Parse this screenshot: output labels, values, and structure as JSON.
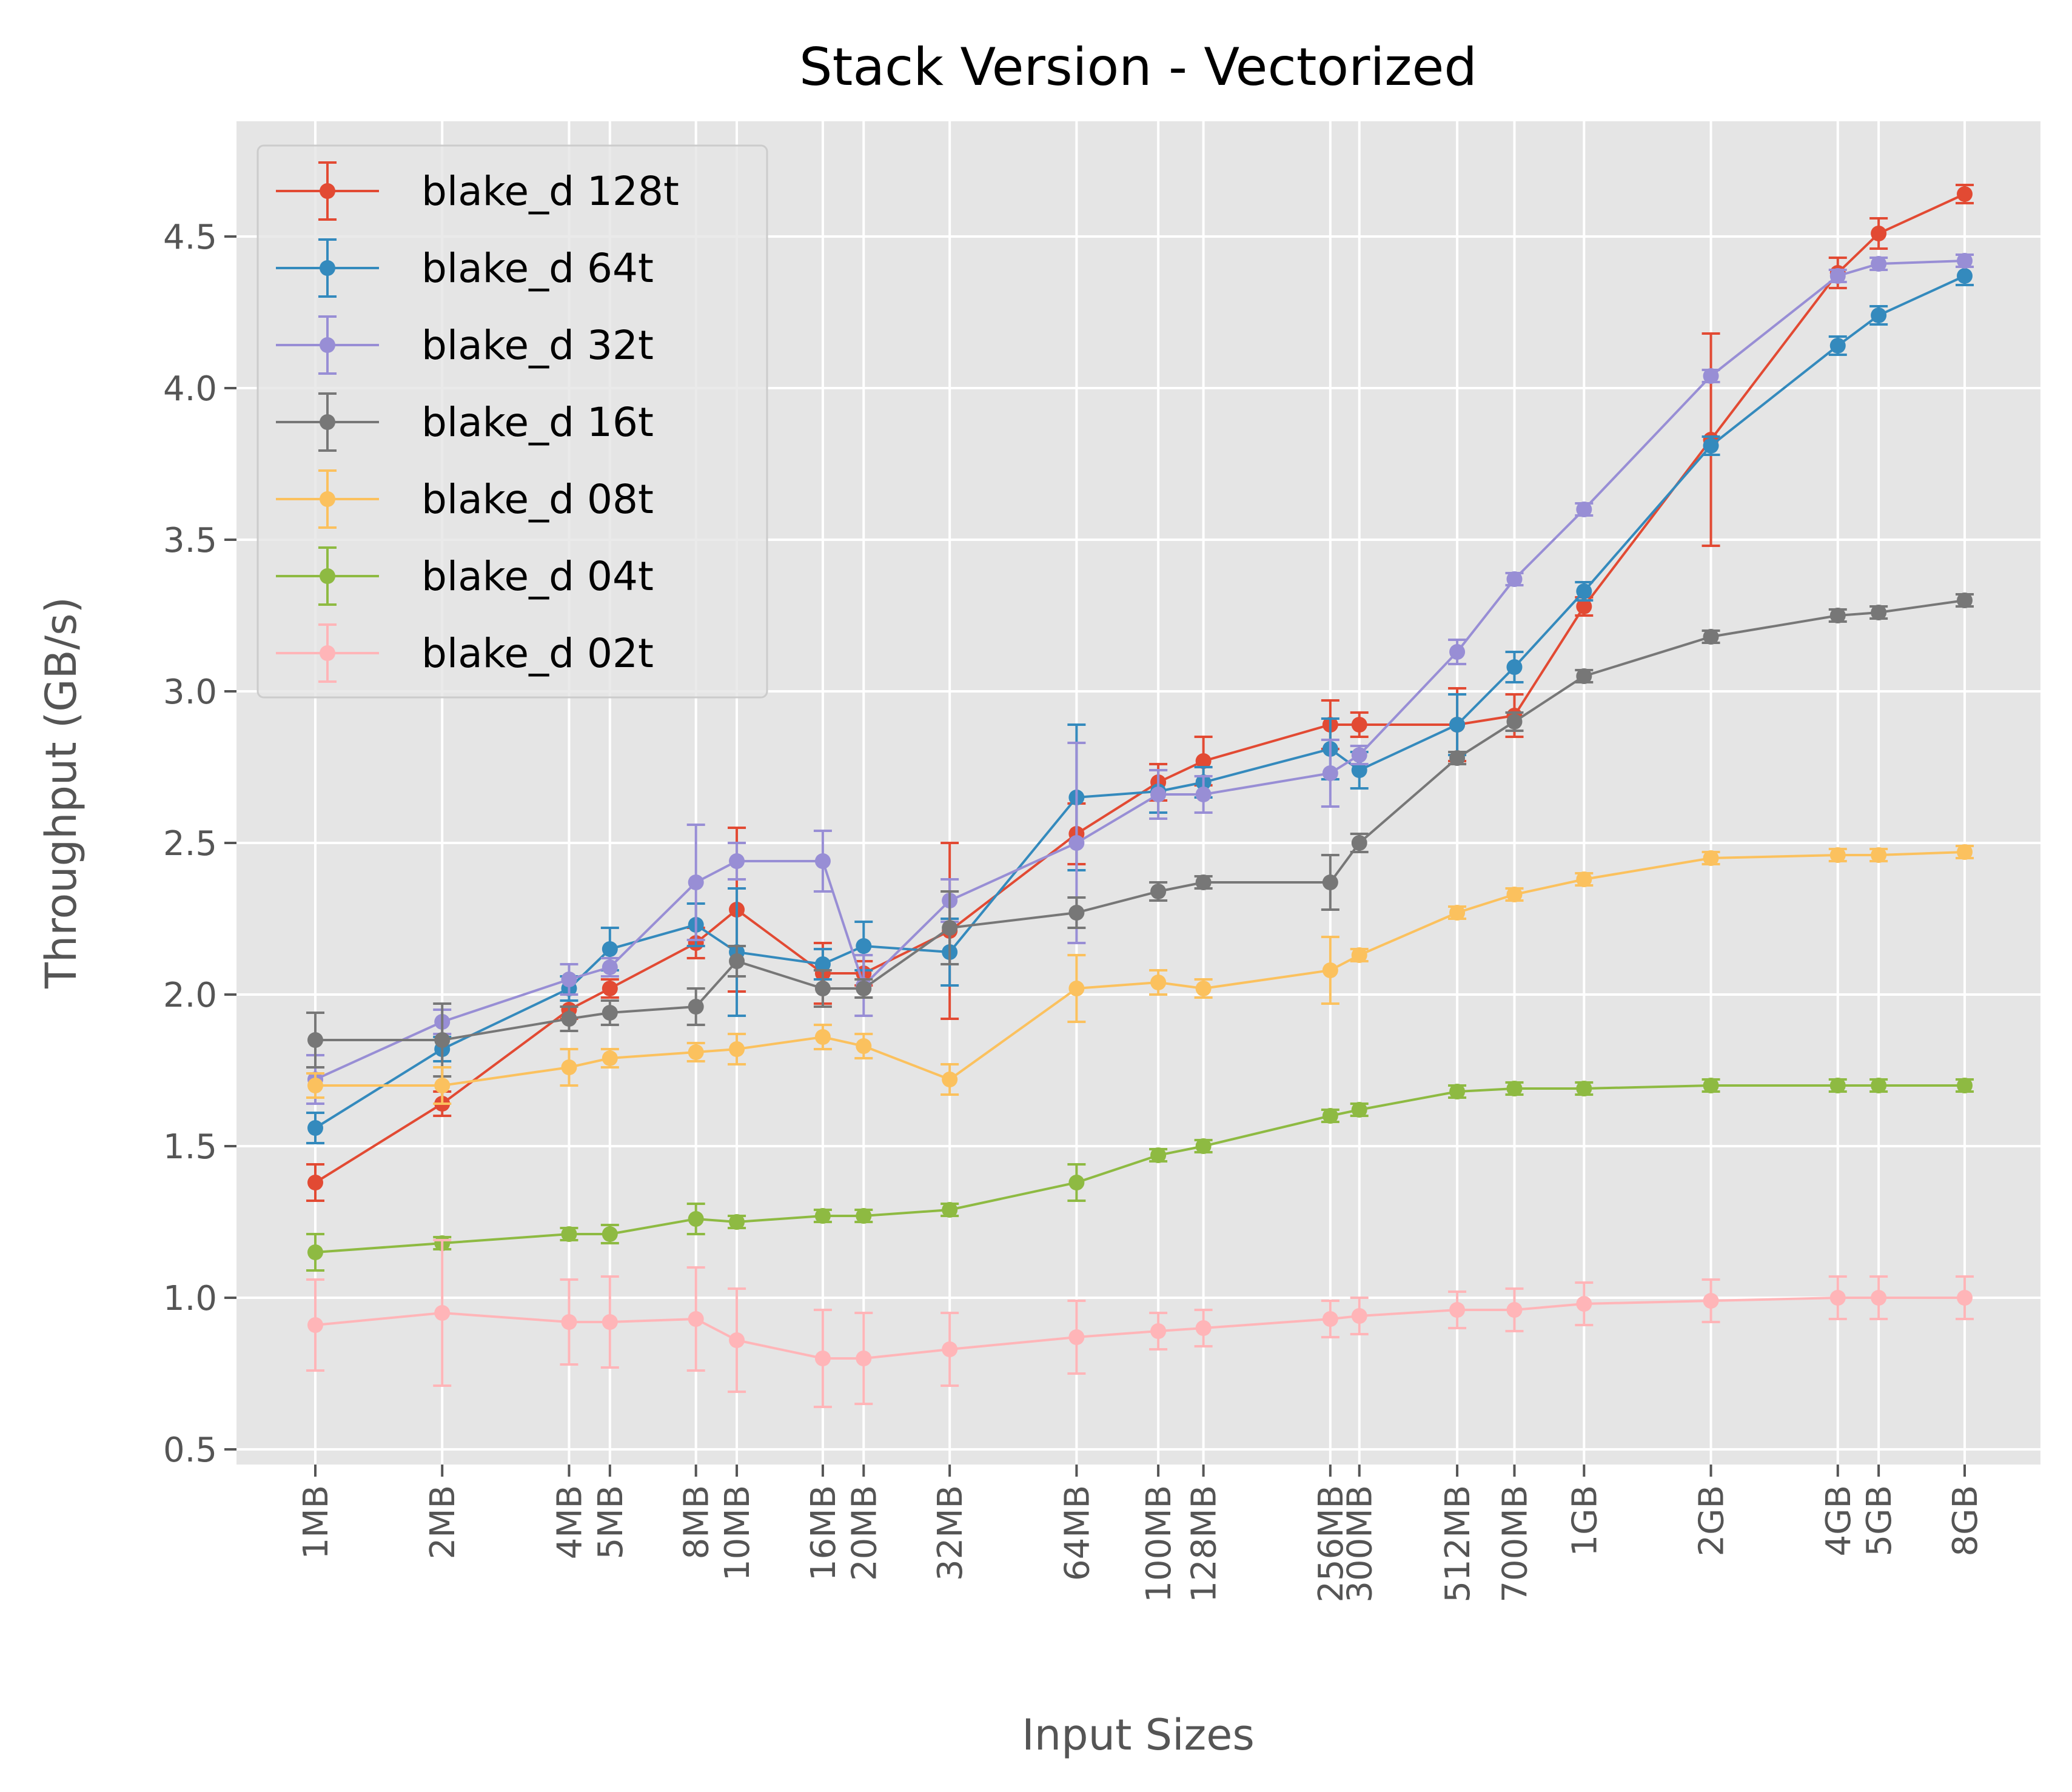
{
  "chart_data": {
    "type": "line",
    "title": "Stack Version - Vectorized",
    "xlabel": "Input Sizes",
    "ylabel": "Throughput (GB/s)",
    "x_scale": "log",
    "ylim": [
      0.45,
      4.88
    ],
    "yticks": [
      0.5,
      1.0,
      1.5,
      2.0,
      2.5,
      3.0,
      3.5,
      4.0,
      4.5
    ],
    "ytick_labels": [
      "0.5",
      "1.0",
      "1.5",
      "2.0",
      "2.5",
      "3.0",
      "3.5",
      "4.0",
      "4.5"
    ],
    "categories": [
      "1MB",
      "2MB",
      "4MB",
      "5MB",
      "8MB",
      "10MB",
      "16MB",
      "20MB",
      "32MB",
      "64MB",
      "100MB",
      "128MB",
      "256MB",
      "300MB",
      "512MB",
      "700MB",
      "1GB",
      "2GB",
      "4GB",
      "5GB",
      "8GB"
    ],
    "x_mb": [
      1,
      2,
      4,
      5,
      8,
      10,
      16,
      20,
      32,
      64,
      100,
      128,
      256,
      300,
      512,
      700,
      1024,
      2048,
      4096,
      5120,
      8192
    ],
    "legend_position": "upper-left",
    "grid": true,
    "series": [
      {
        "name": "blake_d 128t",
        "color": "#E24A33",
        "values": [
          1.38,
          1.64,
          1.95,
          2.02,
          2.17,
          2.28,
          2.07,
          2.07,
          2.21,
          2.53,
          2.7,
          2.77,
          2.89,
          2.89,
          2.89,
          2.92,
          3.28,
          3.83,
          4.38,
          4.51,
          4.64
        ],
        "errors": [
          0.06,
          0.04,
          0.03,
          0.03,
          0.05,
          0.27,
          0.1,
          0.04,
          0.29,
          0.1,
          0.06,
          0.08,
          0.08,
          0.04,
          0.12,
          0.07,
          0.03,
          0.35,
          0.05,
          0.05,
          0.03
        ]
      },
      {
        "name": "blake_d 64t",
        "color": "#348ABD",
        "values": [
          1.56,
          1.82,
          2.02,
          2.15,
          2.23,
          2.14,
          2.1,
          2.16,
          2.14,
          2.65,
          2.67,
          2.7,
          2.81,
          2.74,
          2.89,
          3.08,
          3.33,
          3.81,
          4.14,
          4.24,
          4.37
        ],
        "errors": [
          0.05,
          0.04,
          0.04,
          0.07,
          0.07,
          0.21,
          0.05,
          0.08,
          0.11,
          0.24,
          0.07,
          0.05,
          0.1,
          0.06,
          0.1,
          0.05,
          0.03,
          0.03,
          0.03,
          0.03,
          0.03
        ]
      },
      {
        "name": "blake_d 32t",
        "color": "#988ED5",
        "values": [
          1.72,
          1.91,
          2.05,
          2.09,
          2.37,
          2.44,
          2.44,
          2.03,
          2.31,
          2.5,
          2.66,
          2.66,
          2.73,
          2.79,
          3.13,
          3.37,
          3.6,
          4.04,
          4.37,
          4.41,
          4.42
        ],
        "errors": [
          0.08,
          0.04,
          0.05,
          0.03,
          0.19,
          0.06,
          0.1,
          0.1,
          0.07,
          0.33,
          0.08,
          0.06,
          0.11,
          0.03,
          0.04,
          0.02,
          0.02,
          0.02,
          0.02,
          0.02,
          0.02
        ]
      },
      {
        "name": "blake_d 16t",
        "color": "#777777",
        "values": [
          1.85,
          1.85,
          1.92,
          1.94,
          1.96,
          2.11,
          2.02,
          2.02,
          2.22,
          2.27,
          2.34,
          2.37,
          2.37,
          2.5,
          2.78,
          2.9,
          3.05,
          3.18,
          3.25,
          3.26,
          3.3
        ],
        "errors": [
          0.09,
          0.12,
          0.04,
          0.04,
          0.06,
          0.05,
          0.06,
          0.03,
          0.12,
          0.05,
          0.03,
          0.02,
          0.09,
          0.03,
          0.02,
          0.03,
          0.02,
          0.02,
          0.02,
          0.02,
          0.02
        ]
      },
      {
        "name": "blake_d 08t",
        "color": "#FBC15E",
        "values": [
          1.7,
          1.7,
          1.76,
          1.79,
          1.81,
          1.82,
          1.86,
          1.83,
          1.72,
          2.02,
          2.04,
          2.02,
          2.08,
          2.13,
          2.27,
          2.33,
          2.38,
          2.45,
          2.46,
          2.46,
          2.47
        ],
        "errors": [
          0.04,
          0.06,
          0.06,
          0.03,
          0.03,
          0.05,
          0.04,
          0.04,
          0.05,
          0.11,
          0.04,
          0.03,
          0.11,
          0.02,
          0.02,
          0.02,
          0.02,
          0.02,
          0.02,
          0.02,
          0.02
        ]
      },
      {
        "name": "blake_d 04t",
        "color": "#8EBA42",
        "values": [
          1.15,
          1.18,
          1.21,
          1.21,
          1.26,
          1.25,
          1.27,
          1.27,
          1.29,
          1.38,
          1.47,
          1.5,
          1.6,
          1.62,
          1.68,
          1.69,
          1.69,
          1.7,
          1.7,
          1.7,
          1.7
        ],
        "errors": [
          0.06,
          0.02,
          0.02,
          0.03,
          0.05,
          0.02,
          0.02,
          0.02,
          0.02,
          0.06,
          0.02,
          0.02,
          0.02,
          0.02,
          0.02,
          0.02,
          0.02,
          0.02,
          0.02,
          0.02,
          0.02
        ]
      },
      {
        "name": "blake_d 02t",
        "color": "#FFB5B8",
        "values": [
          0.91,
          0.95,
          0.92,
          0.92,
          0.93,
          0.86,
          0.8,
          0.8,
          0.83,
          0.87,
          0.89,
          0.9,
          0.93,
          0.94,
          0.96,
          0.96,
          0.98,
          0.99,
          1.0,
          1.0,
          1.0
        ],
        "errors": [
          0.15,
          0.24,
          0.14,
          0.15,
          0.17,
          0.17,
          0.16,
          0.15,
          0.12,
          0.12,
          0.06,
          0.06,
          0.06,
          0.06,
          0.06,
          0.07,
          0.07,
          0.07,
          0.07,
          0.07,
          0.07
        ]
      }
    ]
  }
}
